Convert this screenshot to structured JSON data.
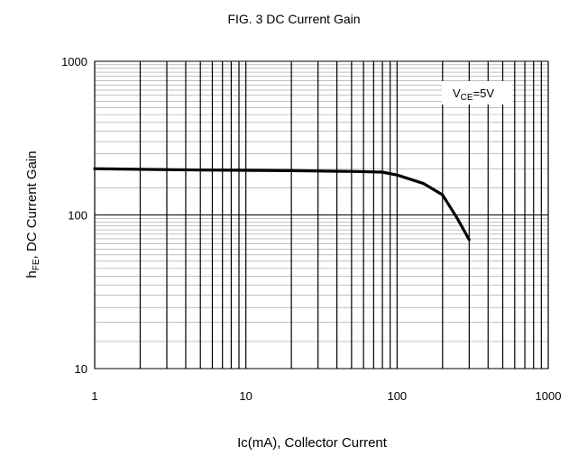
{
  "chart_data": {
    "type": "line",
    "title": "FIG. 3 DC Current Gain",
    "xlabel": "Ic(mA), Collector Current",
    "ylabel": {
      "symbol": "h",
      "subscript": "FE",
      "rest": ", DC Current Gain"
    },
    "xscale": "log",
    "yscale": "log",
    "xlim": [
      1,
      1000
    ],
    "ylim": [
      10,
      1000
    ],
    "xticks": [
      {
        "value": 1,
        "label": "1"
      },
      {
        "value": 10,
        "label": "10"
      },
      {
        "value": 100,
        "label": "100"
      },
      {
        "value": 1000,
        "label": "1000"
      }
    ],
    "yticks": [
      {
        "value": 1000,
        "label": "1000"
      },
      {
        "value": 100,
        "label": "100"
      },
      {
        "value": 10,
        "label": "10"
      }
    ],
    "grid": true,
    "annotation": {
      "symbol": "V",
      "subscript": "CE",
      "rest": "=5V",
      "placement": "top-right"
    },
    "series": [
      {
        "x": [
          1,
          2,
          5,
          10,
          20,
          50,
          80,
          100,
          150,
          200,
          250,
          300
        ],
        "y": [
          200,
          198,
          196,
          195,
          194,
          192,
          190,
          182,
          160,
          135,
          95,
          69
        ]
      }
    ],
    "colors": {
      "line": "#000000",
      "frame": "#000000",
      "grid_major": "#000000",
      "grid_minor": "#9a9a9a",
      "label_box": "#ffffff"
    }
  }
}
